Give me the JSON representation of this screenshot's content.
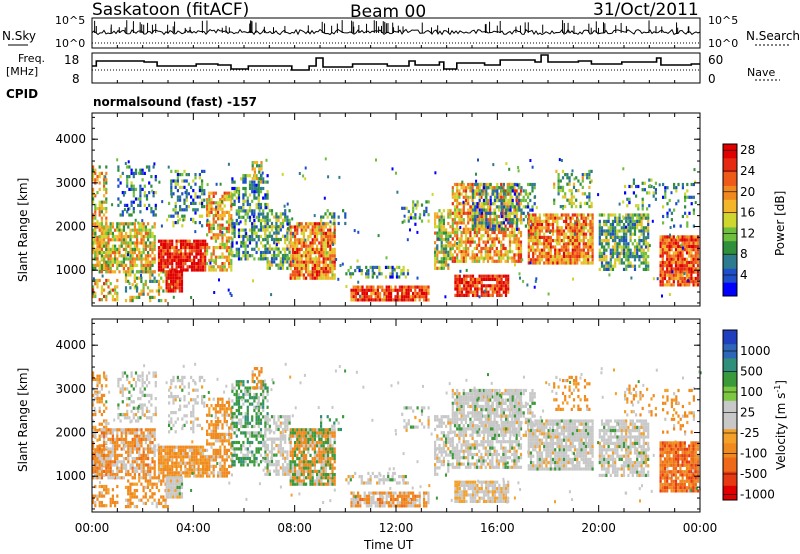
{
  "header": {
    "station": "Saskatoon (fitACF)",
    "beam": "Beam 00",
    "date": "31/Oct/2011"
  },
  "top_panels": {
    "nsky_label": "N.Sky",
    "nsky_ticks": [
      "10^5",
      "10^0"
    ],
    "nsearch_label": "N.Search",
    "nsearch_ticks": [
      "10^5",
      "10^0"
    ],
    "freq_label_1": "Freq.",
    "freq_label_2": "[MHz]",
    "freq_ticks": [
      "18",
      "8"
    ],
    "nave_label": "Nave",
    "nave_ticks": [
      "60",
      "0"
    ],
    "cpid_label": "CPID",
    "cpid_value": "normalsound (fast) -157"
  },
  "chart_data": [
    {
      "type": "heatmap",
      "title": "",
      "xlabel": "Time UT",
      "ylabel": "Slant Range [km]",
      "x_ticks": [
        "00:00",
        "04:00",
        "08:00",
        "12:00",
        "16:00",
        "20:00",
        "00:00"
      ],
      "xlim_hours": [
        0,
        24
      ],
      "ylim": [
        180,
        4600
      ],
      "y_ticks": [
        1000,
        2000,
        3000,
        4000
      ],
      "colorbar": {
        "label": "Power [dB]",
        "ticks": [
          4,
          8,
          12,
          16,
          20,
          24,
          28
        ],
        "colors": [
          "#0000ff",
          "#1f4fc8",
          "#2e7a8e",
          "#2f8f3a",
          "#6fbf3f",
          "#cfd62e",
          "#f3b62a",
          "#f08a1f",
          "#ee5a18",
          "#e62a12",
          "#e00000"
        ]
      }
    },
    {
      "type": "heatmap",
      "title": "",
      "xlabel": "Time UT",
      "ylabel": "Slant Range [km]",
      "x_ticks": [
        "00:00",
        "04:00",
        "08:00",
        "12:00",
        "16:00",
        "20:00",
        "00:00"
      ],
      "xlim_hours": [
        0,
        24
      ],
      "ylim": [
        180,
        4600
      ],
      "y_ticks": [
        1000,
        2000,
        3000,
        4000
      ],
      "colorbar": {
        "label": "Velocity [m s^-1]",
        "ticks": [
          "1000",
          "500",
          "100",
          "25",
          "-25",
          "-100",
          "-500",
          "-1000"
        ],
        "colors": [
          "#1f3fbf",
          "#2e66b8",
          "#2f8f7a",
          "#3a9a3a",
          "#7cc842",
          "#c8c8c8",
          "#c8c8c8",
          "#f3a12a",
          "#f08a1f",
          "#ee6a18",
          "#e83a12",
          "#e00000"
        ]
      }
    }
  ],
  "xlabel": "Time UT",
  "ylabel": "Slant Range [km]",
  "power_label": "Power [dB]",
  "velocity_label": "Velocity [m s",
  "velocity_sup": "-1",
  "velocity_close": "]"
}
